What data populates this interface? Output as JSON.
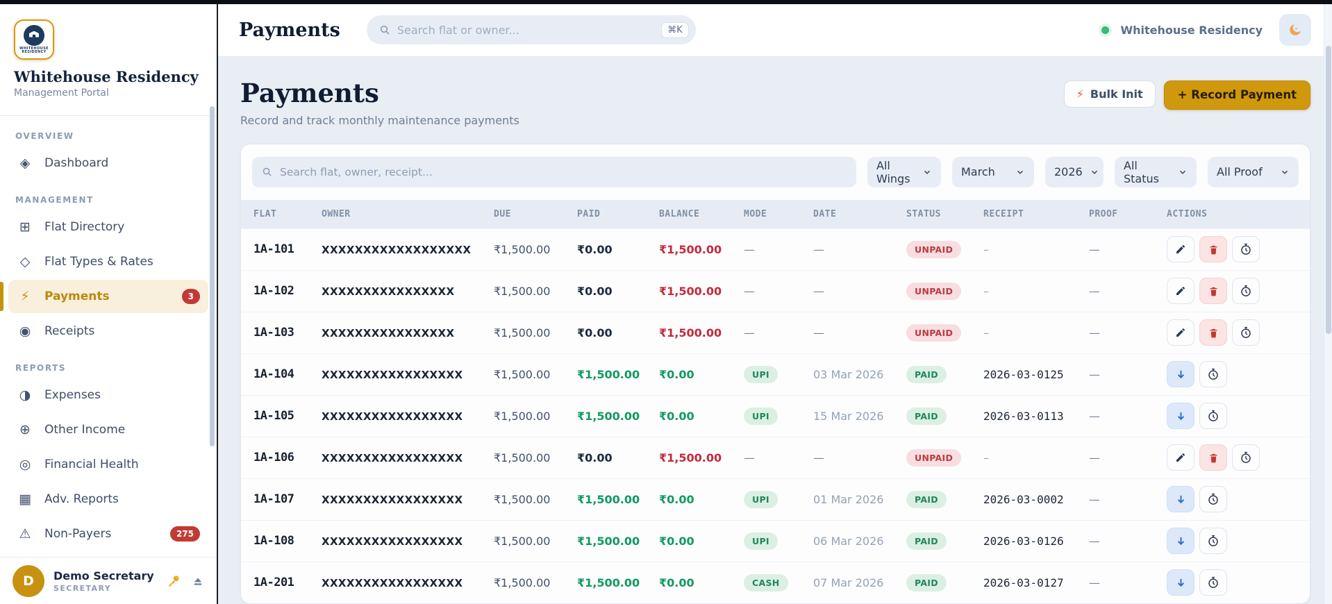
{
  "brand": {
    "title": "Whitehouse Residency",
    "subtitle": "Management Portal",
    "seal_text": "WHITEHOUSE RESIDENCY"
  },
  "topbar": {
    "title": "Payments",
    "search_placeholder": "Search flat or owner...",
    "shortcut": "⌘K",
    "workspace": "Whitehouse Residency"
  },
  "sidebar": {
    "sections": [
      {
        "label": "OVERVIEW",
        "items": [
          {
            "id": "dashboard",
            "label": "Dashboard",
            "icon": "dashboard-icon",
            "glyph": "◈"
          }
        ]
      },
      {
        "label": "MANAGEMENT",
        "items": [
          {
            "id": "flat-directory",
            "label": "Flat Directory",
            "icon": "flat-directory-icon",
            "glyph": "⊞"
          },
          {
            "id": "flat-types-rates",
            "label": "Flat Types & Rates",
            "icon": "flat-types-icon",
            "glyph": "◇"
          },
          {
            "id": "payments",
            "label": "Payments",
            "icon": "payments-lightning-icon",
            "glyph": "⚡",
            "active": true,
            "badge": "3"
          },
          {
            "id": "receipts",
            "label": "Receipts",
            "icon": "receipts-icon",
            "glyph": "◉"
          }
        ]
      },
      {
        "label": "REPORTS",
        "items": [
          {
            "id": "expenses",
            "label": "Expenses",
            "icon": "expenses-icon",
            "glyph": "◑"
          },
          {
            "id": "other-income",
            "label": "Other Income",
            "icon": "other-income-icon",
            "glyph": "⊕"
          },
          {
            "id": "financial-health",
            "label": "Financial Health",
            "icon": "financial-health-icon",
            "glyph": "◎"
          },
          {
            "id": "adv-reports",
            "label": "Adv. Reports",
            "icon": "adv-reports-icon",
            "glyph": "▦"
          },
          {
            "id": "non-payers",
            "label": "Non-Payers",
            "icon": "non-payers-warning-icon",
            "glyph": "⚠",
            "badge": "275"
          }
        ]
      }
    ],
    "user": {
      "initial": "D",
      "name": "Demo Secretary",
      "role": "SECRETARY"
    }
  },
  "page": {
    "title": "Payments",
    "subtitle": "Record and track monthly maintenance payments",
    "bulk_init_label": "Bulk Init",
    "record_payment_label": "+ Record Payment"
  },
  "filters": {
    "search_placeholder": "Search flat, owner, receipt...",
    "selects": [
      {
        "name": "wing-filter",
        "value": "All Wings"
      },
      {
        "name": "month-filter",
        "value": "March"
      },
      {
        "name": "year-filter",
        "value": "2026"
      },
      {
        "name": "status-filter",
        "value": "All Status"
      },
      {
        "name": "proof-filter",
        "value": "All Proof"
      }
    ]
  },
  "table": {
    "columns": [
      "FLAT",
      "OWNER",
      "DUE",
      "PAID",
      "BALANCE",
      "MODE",
      "DATE",
      "STATUS",
      "RECEIPT",
      "PROOF",
      "ACTIONS"
    ],
    "rows": [
      {
        "flat": "1A-101",
        "owner": "XXXXXXXXXXXXXXXXXX",
        "due": "₹1,500.00",
        "paid": "₹0.00",
        "balance": "₹1,500.00",
        "mode": "—",
        "date": "—",
        "status": "UNPAID",
        "receipt": "–",
        "proof": "—",
        "actions": [
          "edit",
          "delete",
          "history"
        ]
      },
      {
        "flat": "1A-102",
        "owner": "XXXXXXXXXXXXXXXX",
        "due": "₹1,500.00",
        "paid": "₹0.00",
        "balance": "₹1,500.00",
        "mode": "—",
        "date": "—",
        "status": "UNPAID",
        "receipt": "–",
        "proof": "—",
        "actions": [
          "edit",
          "delete",
          "history"
        ]
      },
      {
        "flat": "1A-103",
        "owner": "XXXXXXXXXXXXXXXX",
        "due": "₹1,500.00",
        "paid": "₹0.00",
        "balance": "₹1,500.00",
        "mode": "—",
        "date": "—",
        "status": "UNPAID",
        "receipt": "–",
        "proof": "—",
        "actions": [
          "edit",
          "delete",
          "history"
        ]
      },
      {
        "flat": "1A-104",
        "owner": "XXXXXXXXXXXXXXXXX",
        "due": "₹1,500.00",
        "paid": "₹1,500.00",
        "balance": "₹0.00",
        "mode": "UPI",
        "date": "03 Mar 2026",
        "status": "PAID",
        "receipt": "2026-03-0125",
        "proof": "—",
        "actions": [
          "download",
          "history"
        ]
      },
      {
        "flat": "1A-105",
        "owner": "XXXXXXXXXXXXXXXXX",
        "due": "₹1,500.00",
        "paid": "₹1,500.00",
        "balance": "₹0.00",
        "mode": "UPI",
        "date": "15 Mar 2026",
        "status": "PAID",
        "receipt": "2026-03-0113",
        "proof": "—",
        "actions": [
          "download",
          "history"
        ]
      },
      {
        "flat": "1A-106",
        "owner": "XXXXXXXXXXXXXXXXX",
        "due": "₹1,500.00",
        "paid": "₹0.00",
        "balance": "₹1,500.00",
        "mode": "—",
        "date": "—",
        "status": "UNPAID",
        "receipt": "–",
        "proof": "—",
        "actions": [
          "edit",
          "delete",
          "history"
        ]
      },
      {
        "flat": "1A-107",
        "owner": "XXXXXXXXXXXXXXXXX",
        "due": "₹1,500.00",
        "paid": "₹1,500.00",
        "balance": "₹0.00",
        "mode": "UPI",
        "date": "01 Mar 2026",
        "status": "PAID",
        "receipt": "2026-03-0002",
        "proof": "—",
        "actions": [
          "download",
          "history"
        ]
      },
      {
        "flat": "1A-108",
        "owner": "XXXXXXXXXXXXXXXXX",
        "due": "₹1,500.00",
        "paid": "₹1,500.00",
        "balance": "₹0.00",
        "mode": "UPI",
        "date": "06 Mar 2026",
        "status": "PAID",
        "receipt": "2026-03-0126",
        "proof": "—",
        "actions": [
          "download",
          "history"
        ]
      },
      {
        "flat": "1A-201",
        "owner": "XXXXXXXXXXXXXXXXX",
        "due": "₹1,500.00",
        "paid": "₹1,500.00",
        "balance": "₹0.00",
        "mode": "CASH",
        "date": "07 Mar 2026",
        "status": "PAID",
        "receipt": "2026-03-0127",
        "proof": "—",
        "actions": [
          "download",
          "history"
        ]
      }
    ]
  },
  "colors": {
    "accent_gold": "#d0980d",
    "active_item_bg": "#f8efdc",
    "status_green": "#20875b",
    "status_red": "#bd3a43",
    "paid_green": "#119a60",
    "balance_red": "#c22b3d",
    "badge_red": "#c13a33",
    "online_dot": "#3cb878"
  }
}
